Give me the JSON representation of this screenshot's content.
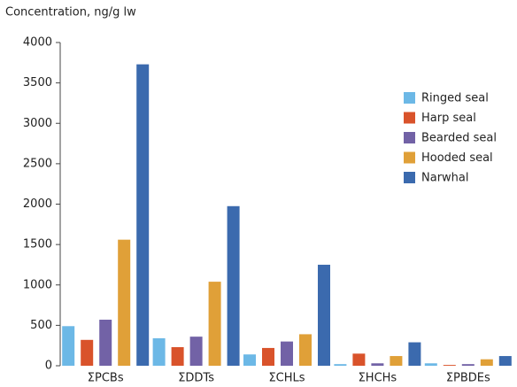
{
  "chart_data": {
    "type": "bar",
    "y_label": "Concentration, ng/g lw",
    "categories": [
      "ΣPCBs",
      "ΣDDTs",
      "ΣCHLs",
      "ΣHCHs",
      "ΣPBDEs"
    ],
    "series": [
      {
        "name": "Ringed seal",
        "color": "#6cb8e6",
        "values": [
          490,
          340,
          140,
          20,
          30
        ]
      },
      {
        "name": "Harp seal",
        "color": "#d9532b",
        "values": [
          320,
          230,
          220,
          150,
          10
        ]
      },
      {
        "name": "Bearded seal",
        "color": "#7262a6",
        "values": [
          570,
          360,
          300,
          30,
          20
        ]
      },
      {
        "name": "Hooded seal",
        "color": "#e0a038",
        "values": [
          1560,
          1040,
          390,
          120,
          80
        ]
      },
      {
        "name": "Narwhal",
        "color": "#3b6aae",
        "values": [
          3730,
          1975,
          1250,
          290,
          120
        ]
      }
    ],
    "ylim": [
      0,
      4000
    ],
    "yticks": [
      0,
      500,
      1000,
      1500,
      2000,
      2500,
      3000,
      3500,
      4000
    ],
    "grid": false
  }
}
